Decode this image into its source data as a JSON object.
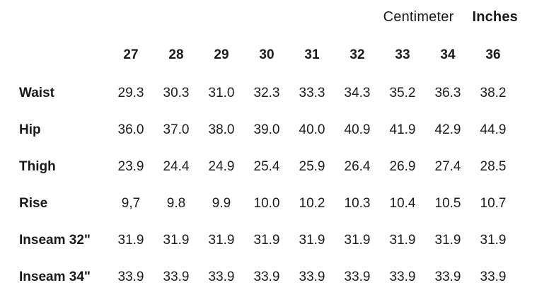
{
  "unit_toggle": {
    "centimeter_label": "Centimeter",
    "inches_label": "Inches",
    "selected": "Inches"
  },
  "colors": {
    "text": "#1a1a1a",
    "background": "#ffffff"
  },
  "chart_data": {
    "type": "table",
    "title": "",
    "unit_options": [
      "Centimeter",
      "Inches"
    ],
    "selected_unit": "Inches",
    "columns": [
      "27",
      "28",
      "29",
      "30",
      "31",
      "32",
      "33",
      "34",
      "36"
    ],
    "rows": [
      {
        "label": "Waist",
        "values": [
          "29.3",
          "30.3",
          "31.0",
          "32.3",
          "33.3",
          "34.3",
          "35.2",
          "36.3",
          "38.2"
        ]
      },
      {
        "label": "Hip",
        "values": [
          "36.0",
          "37.0",
          "38.0",
          "39.0",
          "40.0",
          "40.9",
          "41.9",
          "42.9",
          "44.9"
        ]
      },
      {
        "label": "Thigh",
        "values": [
          "23.9",
          "24.4",
          "24.9",
          "25.4",
          "25.9",
          "26.4",
          "26.9",
          "27.4",
          "28.5"
        ]
      },
      {
        "label": "Rise",
        "values": [
          "9,7",
          "9.8",
          "9.9",
          "10.0",
          "10.2",
          "10.3",
          "10.4",
          "10.5",
          "10.7"
        ]
      },
      {
        "label": "Inseam 32\"",
        "values": [
          "31.9",
          "31.9",
          "31.9",
          "31.9",
          "31.9",
          "31.9",
          "31.9",
          "31.9",
          "31.9"
        ]
      },
      {
        "label": "Inseam 34\"",
        "values": [
          "33.9",
          "33.9",
          "33.9",
          "33.9",
          "33.9",
          "33.9",
          "33.9",
          "33.9",
          "33.9"
        ]
      }
    ]
  }
}
